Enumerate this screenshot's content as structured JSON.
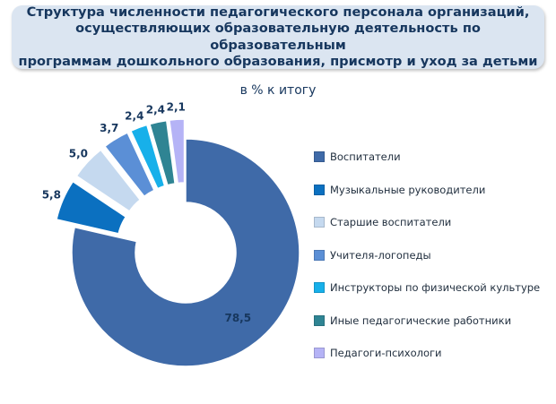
{
  "header": {
    "title": "Структура численности педагогического персонала организаций,\nосуществляющих образовательную деятельность по образовательным\nпрограммам дошкольного образования, присмотр и уход за детьми",
    "subtitle": "в % к итогу"
  },
  "chart_data": {
    "type": "pie",
    "variant": "donut-exploded",
    "title": "Структура численности педагогического персонала организаций, осуществляющих образовательную деятельность по образовательным программам дошкольного образования, присмотр и уход за детьми",
    "subtitle": "в % к итогу",
    "categories": [
      "Воспитатели",
      "Музыкальные руководители",
      "Старшие воспитатели",
      "Учителя-логопеды",
      "Инструкторы по физической культуре",
      "Иные педагогические работники",
      "Педагоги-психологи"
    ],
    "values": [
      78.5,
      5.8,
      5.0,
      3.7,
      2.4,
      2.4,
      2.1
    ],
    "value_labels": [
      "78,5",
      "5,8",
      "5,0",
      "3,7",
      "2,4",
      "2,4",
      "2,1"
    ],
    "colors": [
      "#3f6aa8",
      "#0b70c0",
      "#c5d9ef",
      "#5b8fd6",
      "#17b0ea",
      "#2f8493",
      "#b5b3f6"
    ],
    "legend_position": "right"
  }
}
